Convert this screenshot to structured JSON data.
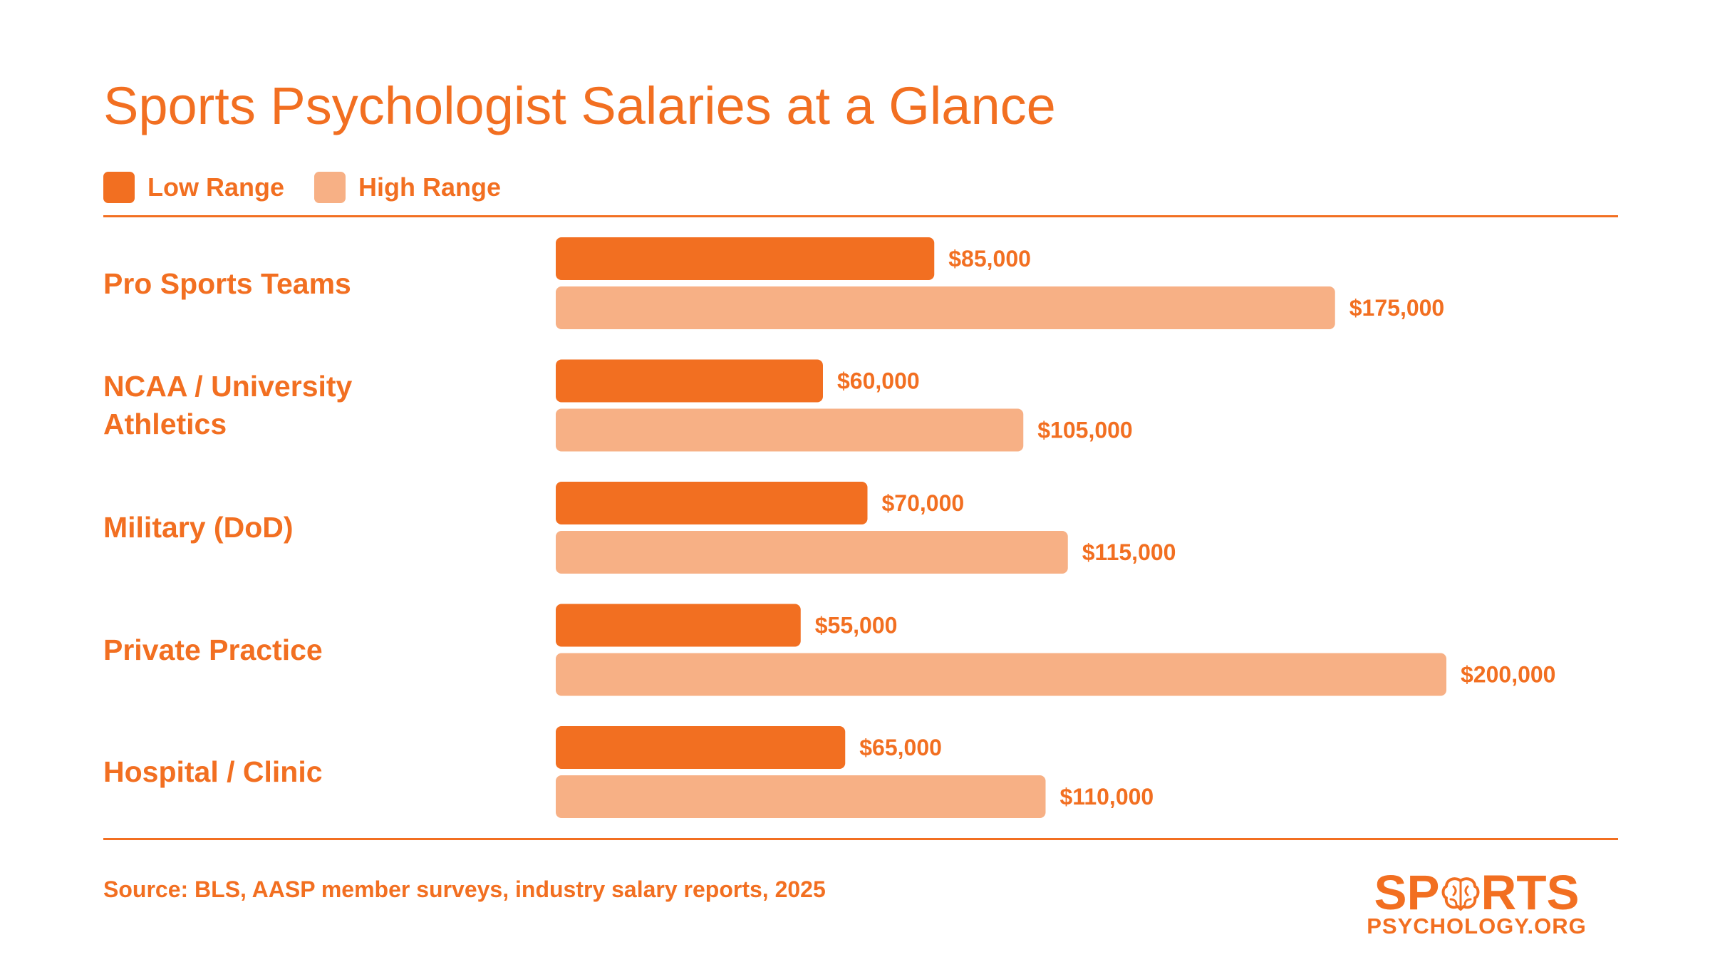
{
  "title": "Sports Psychologist Salaries at a Glance",
  "source": "Source: BLS, AASP member surveys, industry salary reports, 2025",
  "logo": {
    "word_left": "SP",
    "word_right": "RTS",
    "subtitle": "PSYCHOLOGY.ORG",
    "icon": "brain-icon"
  },
  "colors": {
    "accent": "#f26f21",
    "low": "#f26f21",
    "high": "#f7b085"
  },
  "chart_data": {
    "type": "bar",
    "orientation": "horizontal",
    "categories": [
      "Pro Sports Teams",
      "NCAA / University Athletics",
      "Military (DoD)",
      "Private Practice",
      "Hospital / Clinic"
    ],
    "series": [
      {
        "name": "Low Range",
        "values": [
          85000,
          60000,
          70000,
          55000,
          65000
        ],
        "labels": [
          "$85,000",
          "$60,000",
          "$70,000",
          "$55,000",
          "$65,000"
        ]
      },
      {
        "name": "High Range",
        "values": [
          175000,
          105000,
          115000,
          200000,
          110000
        ],
        "labels": [
          "$175,000",
          "$105,000",
          "$115,000",
          "$200,000",
          "$110,000"
        ]
      }
    ],
    "title": "Sports Psychologist Salaries at a Glance",
    "xlabel": "",
    "ylabel": "",
    "xlim": [
      0,
      200000
    ],
    "grid": false,
    "legend": "top-left"
  }
}
